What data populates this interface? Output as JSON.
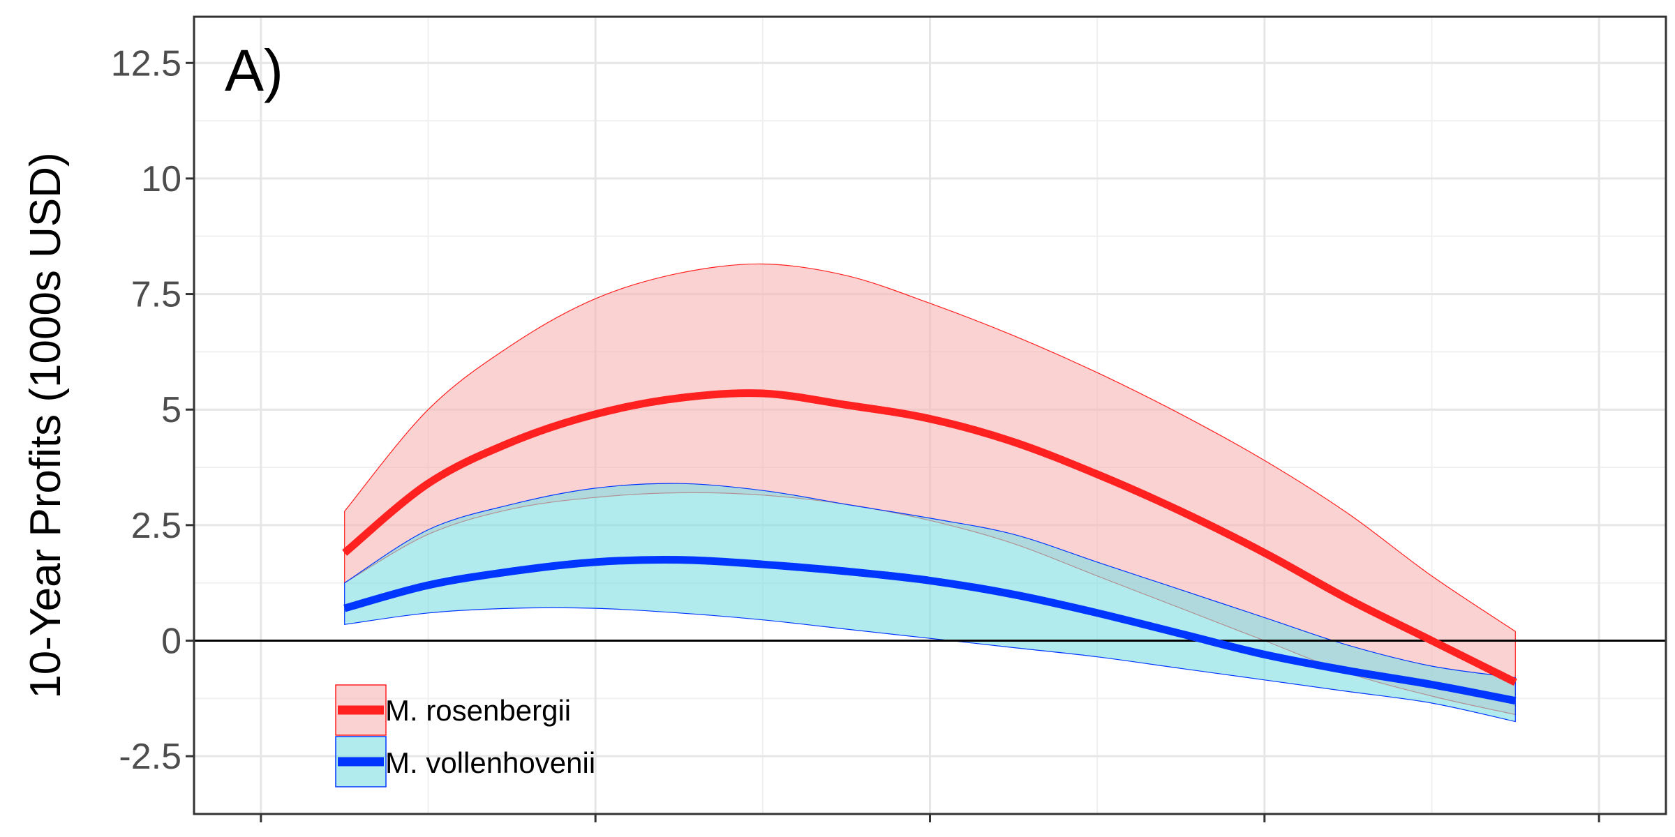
{
  "chart_data": {
    "type": "line",
    "panel_label": "A)",
    "ylabel": "10-Year Profits (1000s USD)",
    "xlabel": "",
    "ylim": [
      -3.75,
      13.5
    ],
    "xlim": [
      -0.2,
      4.2
    ],
    "y_ticks": [
      -2.5,
      0,
      2.5,
      5,
      7.5,
      10,
      12.5
    ],
    "y_tick_labels": [
      "-2.5",
      "0",
      "2.5",
      "5",
      "7.5",
      "10",
      "12.5"
    ],
    "x_ticks": [
      0,
      1,
      2,
      3,
      4
    ],
    "grid": true,
    "reference_line_y": 0,
    "legend_position": "bottom-left",
    "series": [
      {
        "name": "M. rosenbergii",
        "color": "#ff2020",
        "fill": "#f8b4b4",
        "x": [
          0.25,
          0.5,
          0.75,
          1.0,
          1.25,
          1.5,
          1.75,
          2.0,
          2.25,
          2.5,
          2.75,
          3.0,
          3.25,
          3.5,
          3.75
        ],
        "y": [
          1.9,
          3.4,
          4.3,
          4.9,
          5.25,
          5.35,
          5.1,
          4.8,
          4.3,
          3.6,
          2.8,
          1.9,
          0.9,
          0.0,
          -0.9
        ],
        "lower": [
          1.25,
          2.3,
          2.85,
          3.1,
          3.2,
          3.15,
          2.95,
          2.6,
          2.1,
          1.4,
          0.7,
          0.0,
          -0.7,
          -1.2,
          -1.6
        ],
        "upper": [
          2.8,
          5.0,
          6.4,
          7.4,
          7.95,
          8.15,
          7.9,
          7.3,
          6.6,
          5.8,
          4.9,
          3.9,
          2.75,
          1.4,
          0.2
        ]
      },
      {
        "name": "M. vollenhovenii",
        "color": "#0036ff",
        "fill": "#7ddde3",
        "x": [
          0.25,
          0.5,
          0.75,
          1.0,
          1.25,
          1.5,
          1.75,
          2.0,
          2.25,
          2.5,
          2.75,
          3.0,
          3.25,
          3.5,
          3.75
        ],
        "y": [
          0.7,
          1.2,
          1.5,
          1.7,
          1.75,
          1.65,
          1.5,
          1.3,
          1.0,
          0.6,
          0.15,
          -0.3,
          -0.65,
          -0.95,
          -1.3
        ],
        "lower": [
          0.35,
          0.6,
          0.7,
          0.7,
          0.6,
          0.45,
          0.25,
          0.05,
          -0.15,
          -0.35,
          -0.6,
          -0.85,
          -1.1,
          -1.35,
          -1.75
        ],
        "upper": [
          1.25,
          2.4,
          2.95,
          3.3,
          3.4,
          3.25,
          2.95,
          2.65,
          2.3,
          1.7,
          1.1,
          0.5,
          -0.1,
          -0.55,
          -0.8
        ]
      }
    ]
  }
}
